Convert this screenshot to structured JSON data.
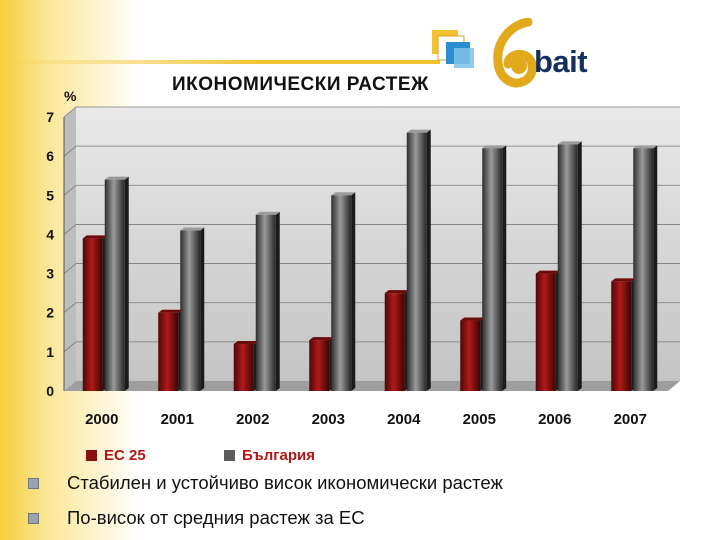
{
  "header": {
    "title": "ИКОНОМИЧЕСКИ РАСТЕЖ",
    "logo_text": "bait"
  },
  "chart_data": {
    "type": "bar",
    "title": "ИКОНОМИЧЕСКИ РАСТЕЖ",
    "ylabel": "%",
    "xlabel": "",
    "categories": [
      "2000",
      "2001",
      "2002",
      "2003",
      "2004",
      "2005",
      "2006",
      "2007"
    ],
    "series": [
      {
        "name": "ЕС 25",
        "color": "#8a0f0f",
        "values": [
          3.9,
          2.0,
          1.2,
          1.3,
          2.5,
          1.8,
          3.0,
          2.8
        ]
      },
      {
        "name": "България",
        "color": "#5c5c5c",
        "values": [
          5.4,
          4.1,
          4.5,
          5.0,
          6.6,
          6.2,
          6.3,
          6.2
        ]
      }
    ],
    "ylim": [
      0,
      7
    ],
    "yticks": [
      0,
      1,
      2,
      3,
      4,
      5,
      6,
      7
    ],
    "grid": true,
    "legend": "bottom"
  },
  "bullets": [
    "Стабилен и устойчиво висок икономически растеж",
    "По-висок от средния растеж за ЕС"
  ]
}
